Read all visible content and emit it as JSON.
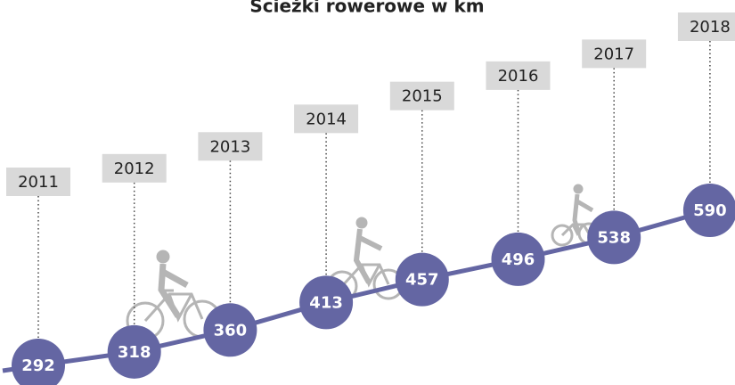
{
  "chart_data": {
    "type": "line",
    "title": "Ścieżki rowerowe w km",
    "categories": [
      "2011",
      "2012",
      "2013",
      "2014",
      "2015",
      "2016",
      "2017",
      "2018"
    ],
    "values": [
      292,
      318,
      360,
      413,
      457,
      496,
      538,
      590
    ],
    "color": "#6466a3",
    "label_box_color": "#d9d9d9"
  }
}
